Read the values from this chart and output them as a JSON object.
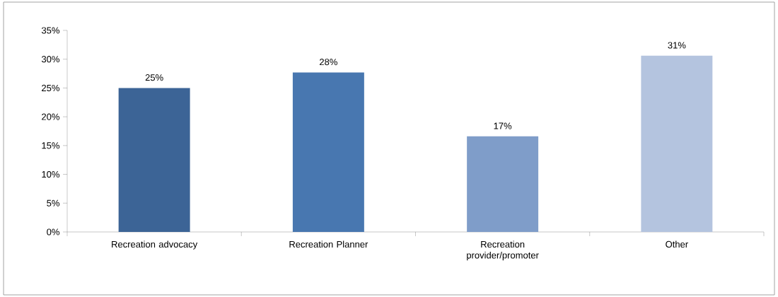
{
  "chart_data": {
    "type": "bar",
    "categories": [
      "Recreation advocacy",
      "Recreation Planner",
      "Recreation provider/promoter",
      "Other"
    ],
    "values": [
      25,
      27.7,
      16.6,
      30.6
    ],
    "value_labels": [
      "25%",
      "28%",
      "17%",
      "31%"
    ],
    "colors": [
      "#3c6496",
      "#4877b0",
      "#7f9dc9",
      "#b4c4df"
    ],
    "ylim": [
      0,
      35
    ],
    "yticks": [
      {
        "value": 0,
        "label": "0%"
      },
      {
        "value": 5,
        "label": "5%"
      },
      {
        "value": 10,
        "label": "10%"
      },
      {
        "value": 15,
        "label": "15%"
      },
      {
        "value": 20,
        "label": "20%"
      },
      {
        "value": 25,
        "label": "25%"
      },
      {
        "value": 30,
        "label": "30%"
      },
      {
        "value": 35,
        "label": "35%"
      }
    ],
    "grid": false
  }
}
